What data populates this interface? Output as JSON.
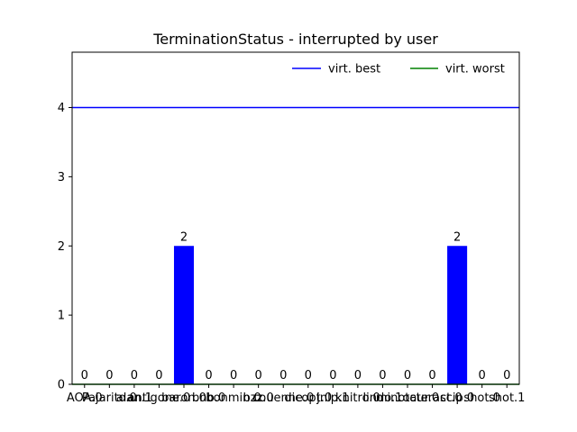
{
  "chart_data": {
    "type": "bar",
    "title": "TerminationStatus - interrupted by user",
    "xlabel": "",
    "ylabel": "",
    "categories": [
      "AOA.0",
      "Pajarito.0",
      "alan.1",
      "antigone.0",
      "baron.0",
      "bnb.0",
      "bonmin.0",
      "bzz.0",
      "couenne.0",
      "dicopt.0",
      "jnlp.1",
      "knitro.0",
      "lindo.1",
      "minotaur.0",
      "octeract.0",
      "scip.0",
      "shot.0",
      "shot.1"
    ],
    "values": [
      0,
      0,
      0,
      0,
      2,
      0,
      0,
      0,
      0,
      0,
      0,
      0,
      0,
      0,
      0,
      2,
      0,
      0
    ],
    "ylim": [
      0,
      4.8
    ],
    "yticks": [
      0,
      1,
      2,
      3,
      4
    ],
    "bar_color": "#0000ff",
    "grid": false,
    "reference_lines": [
      {
        "name": "virt. best",
        "value": 4,
        "color": "#0000ff"
      },
      {
        "name": "virt. worst",
        "value": 0,
        "color": "#008000"
      }
    ],
    "legend_position": "top-right"
  }
}
